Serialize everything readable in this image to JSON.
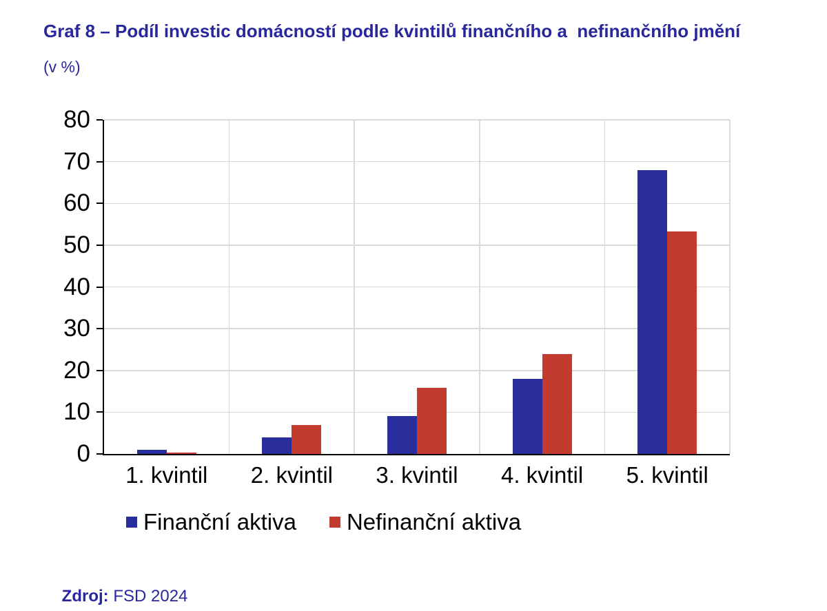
{
  "title": "Graf 8 – Podíl investic domácností podle kvintilů finančního a  nefinančního jmění",
  "subtitle": "(v %)",
  "source": {
    "label": "Zdroj:",
    "value": " FSD 2024"
  },
  "colors": {
    "heading_blue": "#29279C",
    "axis": "#000000",
    "grid": "#D9D9D9",
    "series_blue": "#2A2D9C",
    "series_red": "#C23B2E",
    "background": "#FFFFFF"
  },
  "chart_data": {
    "type": "bar",
    "title": "Graf 8 – Podíl investic domácností podle kvintilů finančního a nefinančního jmění",
    "subtitle": "(v %)",
    "categories": [
      "1. kvintil",
      "2. kvintil",
      "3. kvintil",
      "4. kvintil",
      "5. kvintil"
    ],
    "series": [
      {
        "name": "Finanční aktiva",
        "color": "#2A2D9C",
        "values": [
          1.0,
          4.0,
          9.0,
          18.0,
          68.0
        ]
      },
      {
        "name": "Nefinanční aktiva",
        "color": "#C23B2E",
        "values": [
          0.3,
          6.9,
          15.8,
          23.9,
          53.3
        ]
      }
    ],
    "xlabel": "",
    "ylabel": "",
    "ylim": [
      0,
      80
    ],
    "ytick_step": 10,
    "yticks": [
      0,
      10,
      20,
      30,
      40,
      50,
      60,
      70,
      80
    ],
    "grid": true,
    "legend_position": "bottom",
    "source": "Zdroj: FSD 2024"
  }
}
